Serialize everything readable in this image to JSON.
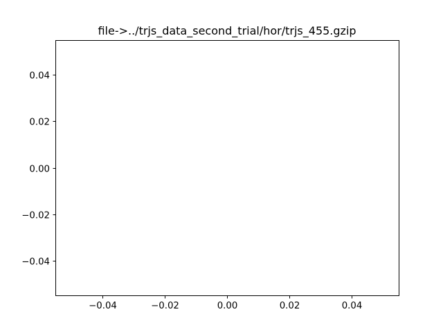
{
  "chart_data": {
    "type": "line",
    "title": "file->../trjs_data_second_trial/hor/trjs_455.gzip",
    "xlabel": "",
    "ylabel": "",
    "series": [
      {
        "x": [],
        "y": []
      }
    ],
    "xlim": [
      -0.055,
      0.055
    ],
    "ylim": [
      -0.055,
      0.055
    ],
    "xticks": [
      -0.04,
      -0.02,
      0.0,
      0.02,
      0.04
    ],
    "yticks": [
      -0.04,
      -0.02,
      0.0,
      0.02,
      0.04
    ],
    "xtick_labels": [
      "−0.04",
      "−0.02",
      "0.00",
      "0.02",
      "0.04"
    ],
    "ytick_labels": [
      "−0.04",
      "−0.02",
      "0.00",
      "0.02",
      "0.04"
    ],
    "grid": false,
    "legend": false
  }
}
